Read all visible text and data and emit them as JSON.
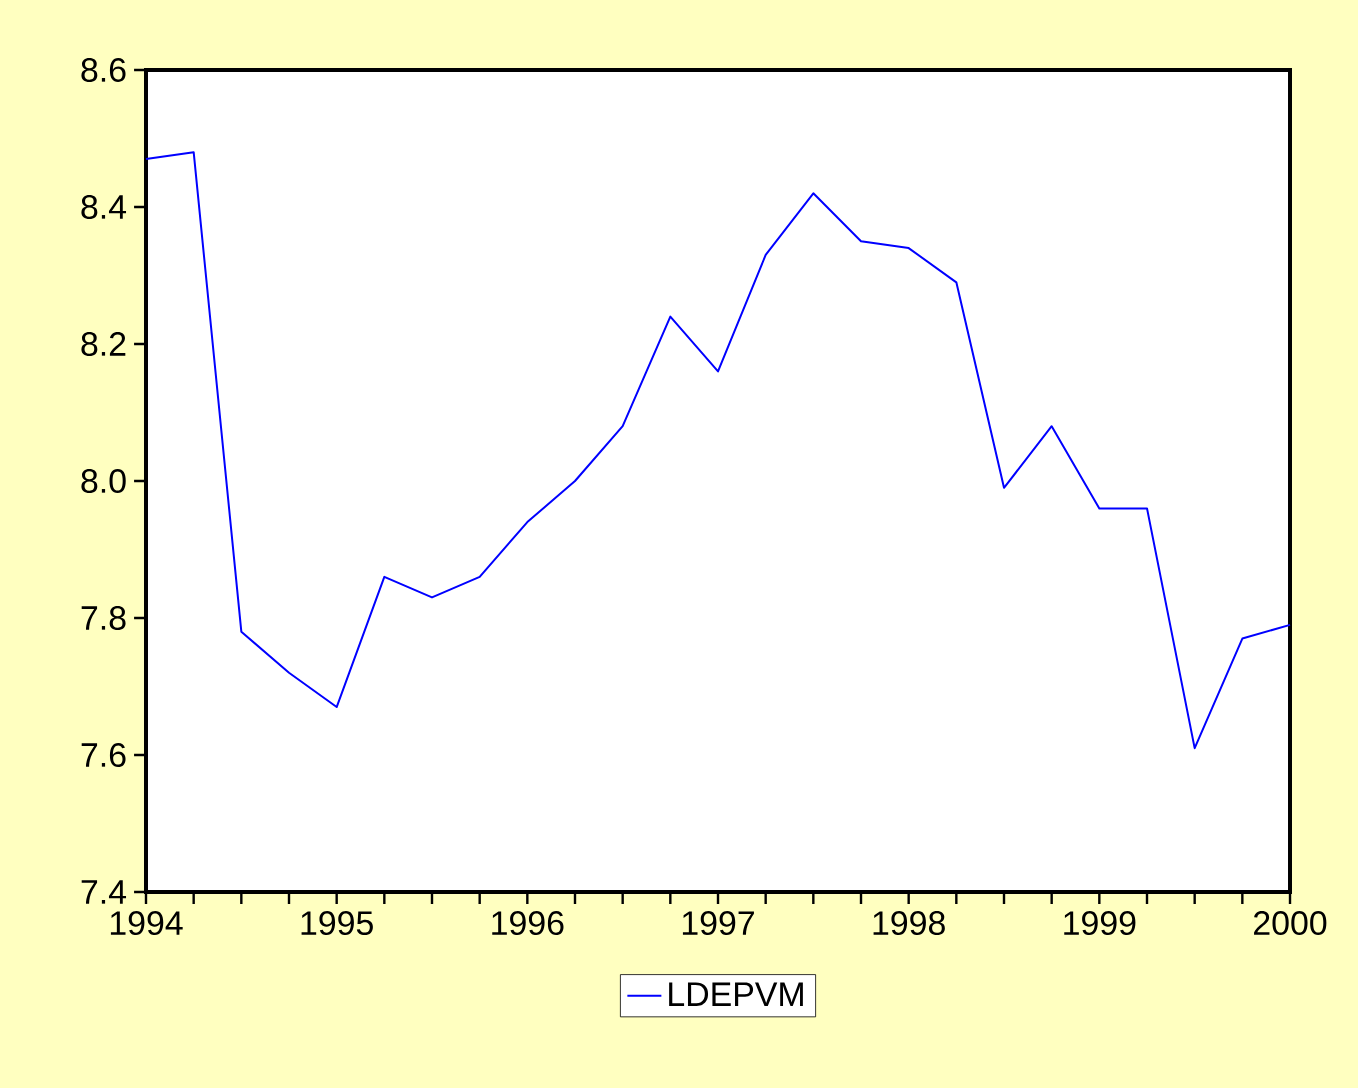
{
  "chart_data": {
    "type": "line",
    "x": [
      1994,
      1994.25,
      1994.5,
      1994.75,
      1995,
      1995.25,
      1995.5,
      1995.75,
      1996,
      1996.25,
      1996.5,
      1996.75,
      1997,
      1997.25,
      1997.5,
      1997.75,
      1998,
      1998.25,
      1998.5,
      1998.75,
      1999,
      1999.25,
      1999.5,
      1999.75,
      2000
    ],
    "series": [
      {
        "name": "LDEPVM",
        "color": "#0000ff",
        "values": [
          8.47,
          8.48,
          7.78,
          7.72,
          7.67,
          7.86,
          7.83,
          7.86,
          7.94,
          8.0,
          8.08,
          8.24,
          8.16,
          8.33,
          8.42,
          8.35,
          8.34,
          8.29,
          7.99,
          8.08,
          7.96,
          7.96,
          7.61,
          7.77,
          7.79
        ]
      }
    ],
    "xlim": [
      1994,
      2000
    ],
    "xticks": [
      1994,
      {
        "value": 1994.25,
        "label": null
      },
      {
        "value": 1994.5,
        "label": null
      },
      {
        "value": 1994.75,
        "label": null
      },
      1995,
      {
        "value": 1995.25,
        "label": null
      },
      {
        "value": 1995.5,
        "label": null
      },
      {
        "value": 1995.75,
        "label": null
      },
      1996,
      {
        "value": 1996.25,
        "label": null
      },
      {
        "value": 1996.5,
        "label": null
      },
      {
        "value": 1996.75,
        "label": null
      },
      1997,
      {
        "value": 1997.25,
        "label": null
      },
      {
        "value": 1997.5,
        "label": null
      },
      {
        "value": 1997.75,
        "label": null
      },
      1998,
      {
        "value": 1998.25,
        "label": null
      },
      {
        "value": 1998.5,
        "label": null
      },
      {
        "value": 1998.75,
        "label": null
      },
      1999,
      {
        "value": 1999.25,
        "label": null
      },
      {
        "value": 1999.5,
        "label": null
      },
      {
        "value": 1999.75,
        "label": null
      },
      2000
    ],
    "ylim": [
      7.4,
      8.6
    ],
    "yticks": [
      {
        "value": 7.4,
        "label": "7.4"
      },
      {
        "value": 7.6,
        "label": "7.6"
      },
      {
        "value": 7.8,
        "label": "7.8"
      },
      {
        "value": 8.0,
        "label": "8.0"
      },
      {
        "value": 8.2,
        "label": "8.2"
      },
      {
        "value": 8.4,
        "label": "8.4"
      },
      {
        "value": 8.6,
        "label": "8.6"
      }
    ],
    "legend": "bottom"
  }
}
